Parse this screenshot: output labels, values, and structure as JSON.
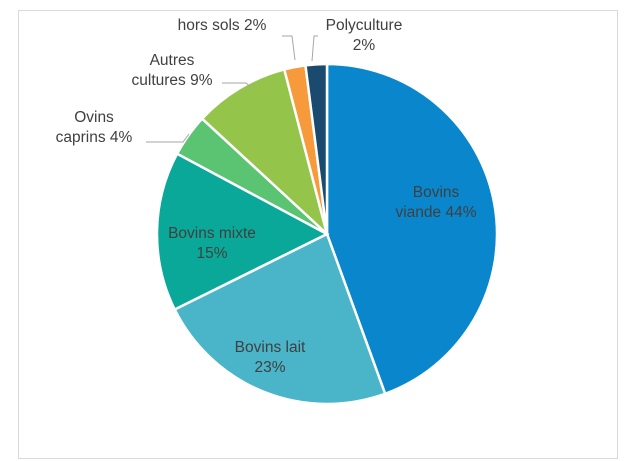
{
  "chart_data": {
    "type": "pie",
    "start_angle_deg": 0,
    "direction": "clockwise",
    "slices": [
      {
        "name": "Bovins viande",
        "value": 44,
        "color": "#0a86cc",
        "label_lines": [
          "Bovins",
          "viande 44%"
        ],
        "label_color": "#404040"
      },
      {
        "name": "Bovins lait",
        "value": 23,
        "color": "#4ab4c8",
        "label_lines": [
          "Bovins lait",
          "23%"
        ],
        "label_color": "#404040"
      },
      {
        "name": "Bovins mixte",
        "value": 15,
        "color": "#0aa898",
        "label_lines": [
          "Bovins mixte",
          "15%"
        ],
        "label_color": "#404040"
      },
      {
        "name": "Ovins caprins",
        "value": 4,
        "color": "#5ac472",
        "label_lines": [
          "Ovins",
          "caprins 4%"
        ],
        "label_color": "#404040"
      },
      {
        "name": "Autres cultures",
        "value": 9,
        "color": "#94c44a",
        "label_lines": [
          "Autres",
          "cultures 9%"
        ],
        "label_color": "#404040"
      },
      {
        "name": "hors sols",
        "value": 2,
        "color": "#f79a3c",
        "label_lines": [
          "hors sols 2%"
        ],
        "label_color": "#404040"
      },
      {
        "name": "Polyculture",
        "value": 2,
        "color": "#1a4a6e",
        "label_lines": [
          "Polyculture",
          "2%"
        ],
        "label_color": "#404040"
      }
    ]
  }
}
